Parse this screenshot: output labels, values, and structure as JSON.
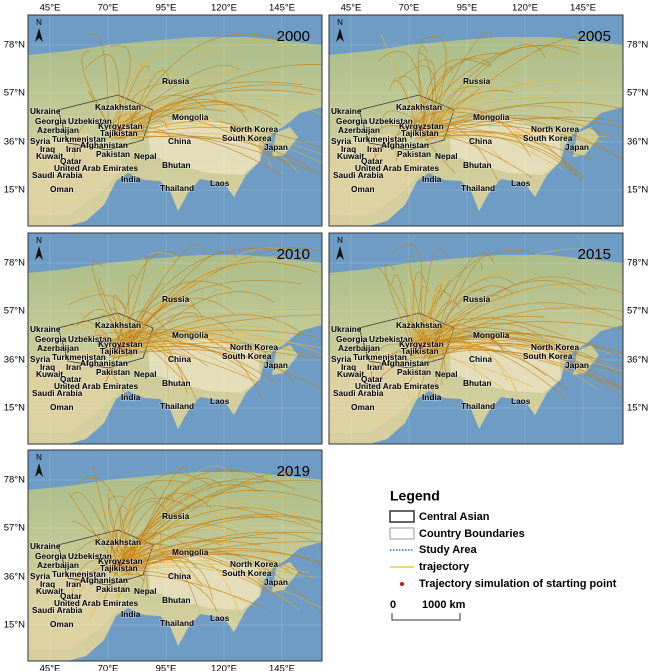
{
  "panels": [
    {
      "year": "2000"
    },
    {
      "year": "2005"
    },
    {
      "year": "2010"
    },
    {
      "year": "2015"
    },
    {
      "year": "2019"
    }
  ],
  "north": "N",
  "lon_labels": [
    "45°E",
    "70°E",
    "95°E",
    "120°E",
    "145°E"
  ],
  "lat_labels": [
    "78°N",
    "57°N",
    "36°N",
    "15°N"
  ],
  "countries": [
    "Russia",
    "Ukraine",
    "Kazakhstan",
    "Georgia",
    "Uzbekistan",
    "Kyrgyzstan",
    "Mongolia",
    "Azerbaijan",
    "Tajikistan",
    "North Korea",
    "South Korea",
    "Syria",
    "Turkmenistan",
    "China",
    "Japan",
    "Iraq",
    "Iran",
    "Afghanistan",
    "Kuwait",
    "Pakistan",
    "Nepal",
    "Bhutan",
    "Qatar",
    "United Arab Emirates",
    "India",
    "Saudi Arabia",
    "Laos",
    "Thailand",
    "Oman"
  ],
  "legend": {
    "title": "Legend",
    "items": [
      "Central Asian",
      "Country Boundaries",
      "Study Area",
      "trajectory",
      "Trajectory simulation of starting point"
    ],
    "scale_start": "0",
    "scale_end": "1000 km"
  }
}
